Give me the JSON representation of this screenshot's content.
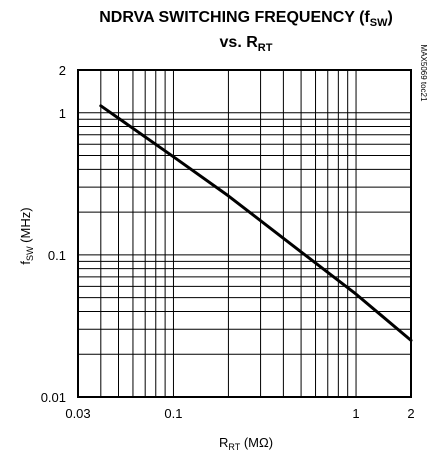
{
  "chart_data": {
    "type": "line",
    "title_line1_main": "NDRVA SWITCHING FREQUENCY (f",
    "title_line1_sub": "SW",
    "title_line1_end": ")",
    "title_line2_main": "vs. R",
    "title_line2_sub": "RT",
    "xlabel_main": "R",
    "xlabel_sub": "RT",
    "xlabel_unit": " (MΩ)",
    "ylabel_main": "f",
    "ylabel_sub": "SW",
    "ylabel_unit": " (MHz)",
    "watermark": "MAX5069 toc21",
    "x_scale": "log",
    "y_scale": "log",
    "xlim": [
      0.03,
      2
    ],
    "ylim": [
      0.01,
      2
    ],
    "grid": true,
    "x_ticks": [
      {
        "value": 0.03,
        "label": "0.03"
      },
      {
        "value": 0.1,
        "label": "0.1"
      },
      {
        "value": 1,
        "label": "1"
      },
      {
        "value": 2,
        "label": "2"
      }
    ],
    "y_ticks": [
      {
        "value": 0.01,
        "label": "0.01"
      },
      {
        "value": 0.1,
        "label": "0.1"
      },
      {
        "value": 1,
        "label": "1"
      },
      {
        "value": 2,
        "label": "2"
      }
    ],
    "series": [
      {
        "x": [
          0.04,
          0.1,
          0.2,
          0.5,
          1,
          2
        ],
        "y": [
          1.12,
          0.49,
          0.26,
          0.105,
          0.053,
          0.025
        ]
      }
    ]
  }
}
